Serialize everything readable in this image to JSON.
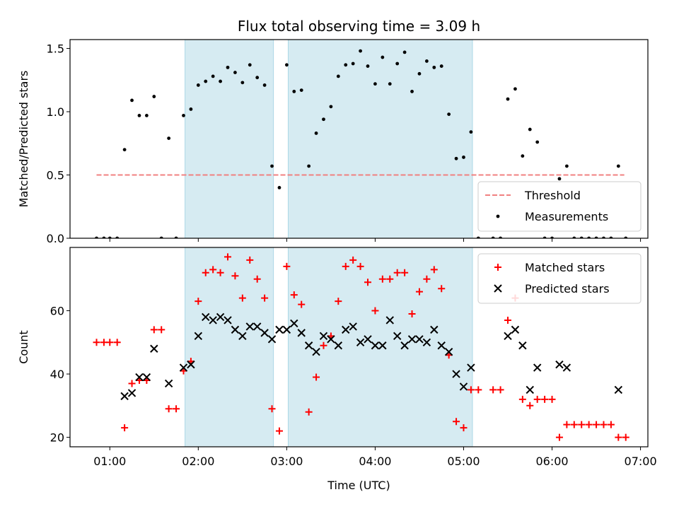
{
  "chart_data": [
    {
      "type": "scatter",
      "title": "Flux total observing time = 3.09 h",
      "xlabel": "",
      "ylabel": "Matched/Predicted stars",
      "xlim": [
        "00:33",
        "07:05"
      ],
      "ylim": [
        0,
        1.57
      ],
      "yticks": [
        0.0,
        0.5,
        1.0,
        1.5
      ],
      "yticklabels": [
        "0.0",
        "0.5",
        "1.0",
        "1.5"
      ],
      "shaded_intervals": [
        [
          "01:51",
          "02:51"
        ],
        [
          "03:01",
          "05:06"
        ]
      ],
      "threshold": {
        "name": "Threshold",
        "y": 0.5,
        "x_range": [
          "00:51",
          "06:49"
        ],
        "color": "#f08080"
      },
      "legend": {
        "position": "lower-right",
        "entries": [
          "Threshold",
          "Measurements"
        ]
      },
      "series": [
        {
          "name": "Measurements",
          "marker": "dot",
          "color": "#000000",
          "points": [
            [
              "00:51",
              0
            ],
            [
              "00:56",
              0
            ],
            [
              "01:00",
              0
            ],
            [
              "01:05",
              0
            ],
            [
              "01:10",
              0.7
            ],
            [
              "01:15",
              1.09
            ],
            [
              "01:20",
              0.97
            ],
            [
              "01:25",
              0.97
            ],
            [
              "01:30",
              1.12
            ],
            [
              "01:35",
              0
            ],
            [
              "01:40",
              0.79
            ],
            [
              "01:45",
              0
            ],
            [
              "01:50",
              0.97
            ],
            [
              "01:55",
              1.02
            ],
            [
              "02:00",
              1.21
            ],
            [
              "02:05",
              1.24
            ],
            [
              "02:10",
              1.28
            ],
            [
              "02:15",
              1.24
            ],
            [
              "02:20",
              1.35
            ],
            [
              "02:25",
              1.31
            ],
            [
              "02:30",
              1.23
            ],
            [
              "02:35",
              1.37
            ],
            [
              "02:40",
              1.27
            ],
            [
              "02:45",
              1.21
            ],
            [
              "02:50",
              0.57
            ],
            [
              "02:55",
              0.4
            ],
            [
              "03:00",
              1.37
            ],
            [
              "03:05",
              1.16
            ],
            [
              "03:10",
              1.17
            ],
            [
              "03:15",
              0.57
            ],
            [
              "03:20",
              0.83
            ],
            [
              "03:25",
              0.94
            ],
            [
              "03:30",
              1.04
            ],
            [
              "03:35",
              1.28
            ],
            [
              "03:40",
              1.37
            ],
            [
              "03:45",
              1.38
            ],
            [
              "03:50",
              1.48
            ],
            [
              "03:55",
              1.36
            ],
            [
              "04:00",
              1.22
            ],
            [
              "04:05",
              1.43
            ],
            [
              "04:10",
              1.22
            ],
            [
              "04:15",
              1.38
            ],
            [
              "04:20",
              1.47
            ],
            [
              "04:25",
              1.16
            ],
            [
              "04:30",
              1.3
            ],
            [
              "04:35",
              1.4
            ],
            [
              "04:40",
              1.35
            ],
            [
              "04:45",
              1.36
            ],
            [
              "04:50",
              0.98
            ],
            [
              "04:55",
              0.63
            ],
            [
              "05:00",
              0.64
            ],
            [
              "05:05",
              0.84
            ],
            [
              "05:10",
              0
            ],
            [
              "05:20",
              0
            ],
            [
              "05:25",
              0
            ],
            [
              "05:30",
              1.1
            ],
            [
              "05:35",
              1.18
            ],
            [
              "05:40",
              0.65
            ],
            [
              "05:45",
              0.86
            ],
            [
              "05:50",
              0.76
            ],
            [
              "05:55",
              0
            ],
            [
              "06:00",
              0
            ],
            [
              "06:05",
              0.47
            ],
            [
              "06:10",
              0.57
            ],
            [
              "06:15",
              0
            ],
            [
              "06:20",
              0
            ],
            [
              "06:25",
              0
            ],
            [
              "06:30",
              0
            ],
            [
              "06:35",
              0
            ],
            [
              "06:40",
              0
            ],
            [
              "06:45",
              0.57
            ],
            [
              "06:50",
              0
            ]
          ]
        }
      ]
    },
    {
      "type": "scatter",
      "title": "",
      "xlabel": "Time (UTC)",
      "ylabel": "Count",
      "xlim": [
        "00:33",
        "07:05"
      ],
      "ylim": [
        17,
        80
      ],
      "yticks": [
        20,
        40,
        60
      ],
      "yticklabels": [
        "20",
        "40",
        "60"
      ],
      "xticks": [
        "01:00",
        "02:00",
        "03:00",
        "04:00",
        "05:00",
        "06:00",
        "07:00"
      ],
      "xticklabels": [
        "01:00",
        "02:00",
        "03:00",
        "04:00",
        "05:00",
        "06:00",
        "07:00"
      ],
      "shaded_intervals": [
        [
          "01:51",
          "02:51"
        ],
        [
          "03:01",
          "05:06"
        ]
      ],
      "legend": {
        "position": "top-right",
        "entries": [
          "Matched stars",
          "Predicted stars"
        ]
      },
      "series": [
        {
          "name": "Matched stars",
          "marker": "plus",
          "color": "#ff0000",
          "points": [
            [
              "00:51",
              50
            ],
            [
              "00:56",
              50
            ],
            [
              "01:00",
              50
            ],
            [
              "01:05",
              50
            ],
            [
              "01:10",
              23
            ],
            [
              "01:15",
              37
            ],
            [
              "01:20",
              38
            ],
            [
              "01:25",
              38
            ],
            [
              "01:30",
              54
            ],
            [
              "01:35",
              54
            ],
            [
              "01:40",
              29
            ],
            [
              "01:45",
              29
            ],
            [
              "01:50",
              41
            ],
            [
              "01:55",
              44
            ],
            [
              "02:00",
              63
            ],
            [
              "02:05",
              72
            ],
            [
              "02:10",
              73
            ],
            [
              "02:15",
              72
            ],
            [
              "02:20",
              77
            ],
            [
              "02:25",
              71
            ],
            [
              "02:30",
              64
            ],
            [
              "02:35",
              76
            ],
            [
              "02:40",
              70
            ],
            [
              "02:45",
              64
            ],
            [
              "02:50",
              29
            ],
            [
              "02:55",
              22
            ],
            [
              "03:00",
              74
            ],
            [
              "03:05",
              65
            ],
            [
              "03:10",
              62
            ],
            [
              "03:15",
              28
            ],
            [
              "03:20",
              39
            ],
            [
              "03:25",
              49
            ],
            [
              "03:30",
              52
            ],
            [
              "03:35",
              63
            ],
            [
              "03:40",
              74
            ],
            [
              "03:45",
              76
            ],
            [
              "03:50",
              74
            ],
            [
              "03:55",
              69
            ],
            [
              "04:00",
              60
            ],
            [
              "04:05",
              70
            ],
            [
              "04:10",
              70
            ],
            [
              "04:15",
              72
            ],
            [
              "04:20",
              72
            ],
            [
              "04:25",
              59
            ],
            [
              "04:30",
              66
            ],
            [
              "04:35",
              70
            ],
            [
              "04:40",
              73
            ],
            [
              "04:45",
              67
            ],
            [
              "04:50",
              46
            ],
            [
              "04:55",
              25
            ],
            [
              "05:00",
              23
            ],
            [
              "05:05",
              35
            ],
            [
              "05:10",
              35
            ],
            [
              "05:20",
              35
            ],
            [
              "05:25",
              35
            ],
            [
              "05:30",
              57
            ],
            [
              "05:35",
              64
            ],
            [
              "05:40",
              32
            ],
            [
              "05:45",
              30
            ],
            [
              "05:50",
              32
            ],
            [
              "05:55",
              32
            ],
            [
              "06:00",
              32
            ],
            [
              "06:05",
              20
            ],
            [
              "06:10",
              24
            ],
            [
              "06:15",
              24
            ],
            [
              "06:20",
              24
            ],
            [
              "06:25",
              24
            ],
            [
              "06:30",
              24
            ],
            [
              "06:35",
              24
            ],
            [
              "06:40",
              24
            ],
            [
              "06:45",
              20
            ],
            [
              "06:50",
              20
            ]
          ]
        },
        {
          "name": "Predicted stars",
          "marker": "x",
          "color": "#000000",
          "points": [
            [
              "01:10",
              33
            ],
            [
              "01:15",
              34
            ],
            [
              "01:20",
              39
            ],
            [
              "01:25",
              39
            ],
            [
              "01:30",
              48
            ],
            [
              "01:40",
              37
            ],
            [
              "01:50",
              42
            ],
            [
              "01:55",
              43
            ],
            [
              "02:00",
              52
            ],
            [
              "02:05",
              58
            ],
            [
              "02:10",
              57
            ],
            [
              "02:15",
              58
            ],
            [
              "02:20",
              57
            ],
            [
              "02:25",
              54
            ],
            [
              "02:30",
              52
            ],
            [
              "02:35",
              55
            ],
            [
              "02:40",
              55
            ],
            [
              "02:45",
              53
            ],
            [
              "02:50",
              51
            ],
            [
              "02:55",
              54
            ],
            [
              "03:00",
              54
            ],
            [
              "03:05",
              56
            ],
            [
              "03:10",
              53
            ],
            [
              "03:15",
              49
            ],
            [
              "03:20",
              47
            ],
            [
              "03:25",
              52
            ],
            [
              "03:30",
              51
            ],
            [
              "03:35",
              49
            ],
            [
              "03:40",
              54
            ],
            [
              "03:45",
              55
            ],
            [
              "03:50",
              50
            ],
            [
              "03:55",
              51
            ],
            [
              "04:00",
              49
            ],
            [
              "04:05",
              49
            ],
            [
              "04:10",
              57
            ],
            [
              "04:15",
              52
            ],
            [
              "04:20",
              49
            ],
            [
              "04:25",
              51
            ],
            [
              "04:30",
              51
            ],
            [
              "04:35",
              50
            ],
            [
              "04:40",
              54
            ],
            [
              "04:45",
              49
            ],
            [
              "04:50",
              47
            ],
            [
              "04:55",
              40
            ],
            [
              "05:00",
              36
            ],
            [
              "05:05",
              42
            ],
            [
              "05:30",
              52
            ],
            [
              "05:35",
              54
            ],
            [
              "05:40",
              49
            ],
            [
              "05:45",
              35
            ],
            [
              "05:50",
              42
            ],
            [
              "06:05",
              43
            ],
            [
              "06:10",
              42
            ],
            [
              "06:45",
              35
            ]
          ]
        }
      ]
    }
  ]
}
